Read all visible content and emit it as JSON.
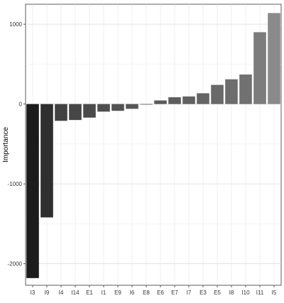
{
  "chart_data": {
    "type": "bar",
    "title": "",
    "xlabel": "",
    "ylabel": "Importance",
    "ylim": [
      -2270,
      1250
    ],
    "yticks": [
      1000,
      0,
      -1000,
      -2000
    ],
    "ytick_labels": [
      "1000",
      "0",
      "-1000",
      "-2000"
    ],
    "grid": true,
    "legend": "none",
    "categories": [
      "I3",
      "I9",
      "I4",
      "I14",
      "E1",
      "I1",
      "E9",
      "I6",
      "E8",
      "E6",
      "E7",
      "I7",
      "E3",
      "E5",
      "I8",
      "I10",
      "I11",
      "I5"
    ],
    "values": [
      -2180,
      -1420,
      -210,
      -200,
      -170,
      -95,
      -85,
      -60,
      -5,
      45,
      85,
      95,
      135,
      240,
      310,
      370,
      900,
      1140
    ],
    "colors": [
      "#1c1c1c",
      "#2f2f2f",
      "#424242",
      "#464646",
      "#4a4a4a",
      "#4f4f4f",
      "#525252",
      "#555555",
      "#585858",
      "#5b5b5b",
      "#5e5e5e",
      "#616161",
      "#656565",
      "#696969",
      "#6d6d6d",
      "#717171",
      "#7c7c7c",
      "#8a8a8a"
    ]
  }
}
